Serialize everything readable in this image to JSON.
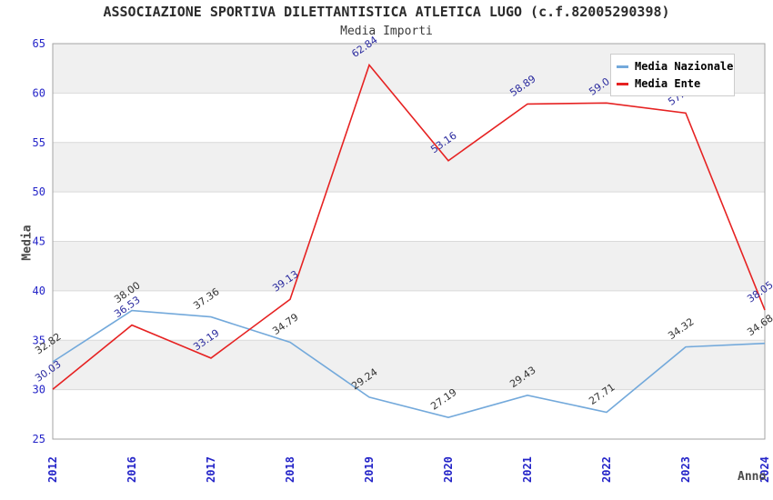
{
  "chart_data": {
    "type": "line",
    "title": "ASSOCIAZIONE SPORTIVA DILETTANTISTICA ATLETICA LUGO (c.f.82005290398)",
    "subtitle": "Media Importi",
    "xlabel": "Anno",
    "ylabel": "Media",
    "ylim": [
      25,
      65
    ],
    "yticks": [
      65,
      60,
      55,
      50,
      45,
      40,
      35,
      30,
      25
    ],
    "categories": [
      "2012",
      "2016",
      "2017",
      "2018",
      "2019",
      "2020",
      "2021",
      "2022",
      "2023",
      "2024"
    ],
    "series": [
      {
        "name": "Media Nazionale",
        "color": "#73a9db",
        "label_color": "#333333",
        "values": [
          32.82,
          38.0,
          37.36,
          34.79,
          29.24,
          27.19,
          29.43,
          27.71,
          34.32,
          34.68
        ],
        "labels": [
          "32.82",
          "38.00",
          "37.36",
          "34.79",
          "29.24",
          "27.19",
          "29.43",
          "27.71",
          "34.32",
          "34.68"
        ]
      },
      {
        "name": "Media Ente",
        "color": "#e62222",
        "label_color": "#2a2a9e",
        "values": [
          30.03,
          36.53,
          33.19,
          39.13,
          62.84,
          53.16,
          58.89,
          59.0,
          57.98,
          38.05
        ],
        "labels": [
          "30.03",
          "36.53",
          "33.19",
          "39.13",
          "62.84",
          "53.16",
          "58.89",
          "59.0",
          "57.98",
          "38.05"
        ]
      }
    ],
    "legend_position": "top-right",
    "grid": "horizontal-bands",
    "band_color": "#f0f0f0",
    "gridline_color": "#d9d9d9",
    "border_color": "#a3a3a3",
    "axis_tick_color": "#2424c8"
  }
}
